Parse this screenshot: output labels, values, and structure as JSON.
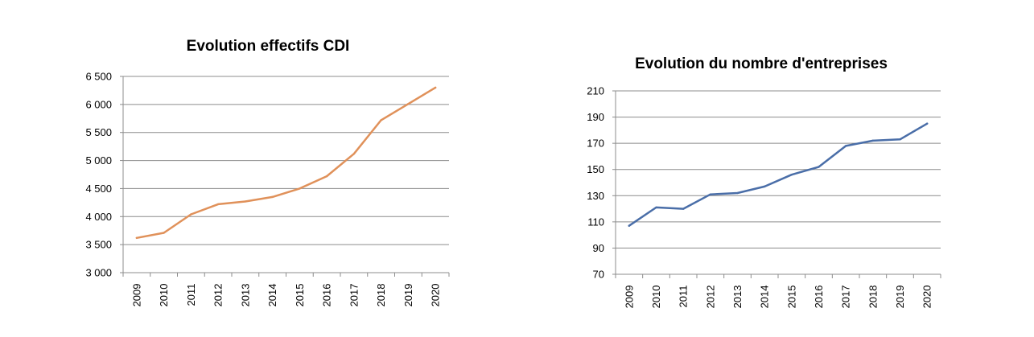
{
  "chart_data": [
    {
      "type": "line",
      "title": "Evolution effectifs CDI",
      "xlabel": "",
      "ylabel": "",
      "categories": [
        "2009",
        "2010",
        "2011",
        "2012",
        "2013",
        "2014",
        "2015",
        "2016",
        "2017",
        "2018",
        "2019",
        "2020"
      ],
      "series": [
        {
          "values": [
            3620,
            3710,
            4040,
            4220,
            4270,
            4350,
            4500,
            4720,
            5120,
            5720,
            6010,
            6300
          ]
        }
      ],
      "ylim": [
        3000,
        6500
      ],
      "yticks": [
        3000,
        3500,
        4000,
        4500,
        5000,
        5500,
        6000,
        6500
      ],
      "ytick_labels": [
        "3 000",
        "3 500",
        "4 000",
        "4 500",
        "5 000",
        "5 500",
        "6 000",
        "6 500"
      ],
      "grid": true,
      "legend": "none",
      "color": "#e0915a"
    },
    {
      "type": "line",
      "title": "Evolution du nombre d'entreprises",
      "xlabel": "",
      "ylabel": "",
      "categories": [
        "2009",
        "2010",
        "2011",
        "2012",
        "2013",
        "2014",
        "2015",
        "2016",
        "2017",
        "2018",
        "2019",
        "2020"
      ],
      "series": [
        {
          "values": [
            107,
            121,
            120,
            131,
            132,
            137,
            146,
            152,
            168,
            172,
            173,
            185
          ]
        }
      ],
      "ylim": [
        70,
        210
      ],
      "yticks": [
        70,
        90,
        110,
        130,
        150,
        170,
        190,
        210
      ],
      "ytick_labels": [
        "70",
        "90",
        "110",
        "130",
        "150",
        "170",
        "190",
        "210"
      ],
      "grid": true,
      "legend": "none",
      "color": "#4a6ea8"
    }
  ]
}
